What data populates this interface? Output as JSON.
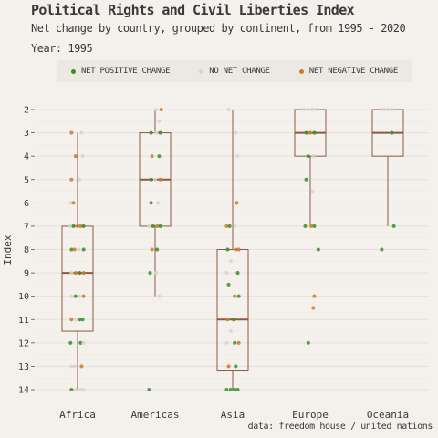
{
  "header": {
    "title": "Political Rights and Civil Liberties Index",
    "subtitle": "Net change by country, grouped by continent, from 1995 - 2020",
    "year_label": "Year: 1995"
  },
  "caption": "data: freedom house / united nations",
  "colors": {
    "background": "#f4f1ec",
    "legend_bg": "#ece8e2",
    "box": "#8a5a44",
    "positive": "#3a8f2a",
    "none": "#d8d4cf",
    "negative": "#d07a2c"
  },
  "chart_data": {
    "type": "boxplot",
    "title": "Political Rights and Civil Liberties Index",
    "subtitle": "Net change by country, grouped by continent, from 1995 - 2020",
    "ylabel": "Index",
    "xlabel": "",
    "y_axis_reversed": true,
    "ylim": [
      2,
      14
    ],
    "y_ticks": [
      2,
      3,
      4,
      5,
      6,
      7,
      8,
      9,
      10,
      11,
      12,
      13,
      14
    ],
    "grid": "horizontal",
    "legend_position": "top",
    "legend": [
      {
        "key": "positive",
        "label": "NET POSITIVE CHANGE"
      },
      {
        "key": "none",
        "label": "NO NET CHANGE"
      },
      {
        "key": "negative",
        "label": "NET NEGATIVE CHANGE"
      }
    ],
    "categories": [
      "Africa",
      "Americas",
      "Asia",
      "Europe",
      "Oceania"
    ],
    "boxes": [
      {
        "category": "Africa",
        "whisker_low": 3,
        "q1": 7,
        "median": 9,
        "q3": 11.5,
        "whisker_high": 14
      },
      {
        "category": "Americas",
        "whisker_low": 2,
        "q1": 3,
        "median": 5,
        "q3": 7,
        "whisker_high": 10
      },
      {
        "category": "Asia",
        "whisker_low": 2,
        "q1": 8,
        "median": 11,
        "q3": 13.2,
        "whisker_high": 14
      },
      {
        "category": "Europe",
        "whisker_low": 2,
        "q1": 2,
        "median": 3,
        "q3": 4,
        "whisker_high": 7
      },
      {
        "category": "Oceania",
        "whisker_low": 2,
        "q1": 2,
        "median": 3,
        "q3": 4,
        "whisker_high": 7
      }
    ],
    "points": [
      {
        "category": "Africa",
        "jitter": -0.3,
        "value": 3,
        "change": "negative"
      },
      {
        "category": "Africa",
        "jitter": 0.2,
        "value": 3,
        "change": "none"
      },
      {
        "category": "Africa",
        "jitter": -0.1,
        "value": 4,
        "change": "negative"
      },
      {
        "category": "Africa",
        "jitter": 0.25,
        "value": 4,
        "change": "none"
      },
      {
        "category": "Africa",
        "jitter": -0.3,
        "value": 5,
        "change": "negative"
      },
      {
        "category": "Africa",
        "jitter": 0.1,
        "value": 5,
        "change": "none"
      },
      {
        "category": "Africa",
        "jitter": -0.35,
        "value": 6,
        "change": "none"
      },
      {
        "category": "Africa",
        "jitter": -0.2,
        "value": 6,
        "change": "negative"
      },
      {
        "category": "Africa",
        "jitter": -0.35,
        "value": 7,
        "change": "none"
      },
      {
        "category": "Africa",
        "jitter": -0.2,
        "value": 7,
        "change": "positive"
      },
      {
        "category": "Africa",
        "jitter": 0.0,
        "value": 7,
        "change": "negative"
      },
      {
        "category": "Africa",
        "jitter": 0.15,
        "value": 7,
        "change": "negative"
      },
      {
        "category": "Africa",
        "jitter": 0.3,
        "value": 7,
        "change": "positive"
      },
      {
        "category": "Africa",
        "jitter": -0.3,
        "value": 8,
        "change": "positive"
      },
      {
        "category": "Africa",
        "jitter": -0.15,
        "value": 8,
        "change": "negative"
      },
      {
        "category": "Africa",
        "jitter": 0.05,
        "value": 8,
        "change": "none"
      },
      {
        "category": "Africa",
        "jitter": 0.3,
        "value": 8,
        "change": "positive"
      },
      {
        "category": "Africa",
        "jitter": -0.3,
        "value": 9,
        "change": "none"
      },
      {
        "category": "Africa",
        "jitter": -0.1,
        "value": 9,
        "change": "negative"
      },
      {
        "category": "Africa",
        "jitter": 0.1,
        "value": 9,
        "change": "positive"
      },
      {
        "category": "Africa",
        "jitter": 0.3,
        "value": 9,
        "change": "negative"
      },
      {
        "category": "Africa",
        "jitter": -0.3,
        "value": 10,
        "change": "none"
      },
      {
        "category": "Africa",
        "jitter": -0.1,
        "value": 10,
        "change": "positive"
      },
      {
        "category": "Africa",
        "jitter": 0.1,
        "value": 10,
        "change": "none"
      },
      {
        "category": "Africa",
        "jitter": 0.3,
        "value": 10,
        "change": "negative"
      },
      {
        "category": "Africa",
        "jitter": -0.3,
        "value": 11,
        "change": "negative"
      },
      {
        "category": "Africa",
        "jitter": -0.1,
        "value": 11,
        "change": "none"
      },
      {
        "category": "Africa",
        "jitter": 0.1,
        "value": 11,
        "change": "positive"
      },
      {
        "category": "Africa",
        "jitter": 0.25,
        "value": 11,
        "change": "positive"
      },
      {
        "category": "Africa",
        "jitter": -0.35,
        "value": 12,
        "change": "positive"
      },
      {
        "category": "Africa",
        "jitter": 0.15,
        "value": 12,
        "change": "positive"
      },
      {
        "category": "Africa",
        "jitter": 0.3,
        "value": 12,
        "change": "none"
      },
      {
        "category": "Africa",
        "jitter": -0.3,
        "value": 13,
        "change": "none"
      },
      {
        "category": "Africa",
        "jitter": -0.15,
        "value": 13,
        "change": "none"
      },
      {
        "category": "Africa",
        "jitter": 0.2,
        "value": 13,
        "change": "negative"
      },
      {
        "category": "Africa",
        "jitter": -0.3,
        "value": 14,
        "change": "positive"
      },
      {
        "category": "Africa",
        "jitter": -0.1,
        "value": 14,
        "change": "none"
      },
      {
        "category": "Africa",
        "jitter": 0.15,
        "value": 14,
        "change": "none"
      },
      {
        "category": "Africa",
        "jitter": 0.3,
        "value": 14,
        "change": "none"
      },
      {
        "category": "Americas",
        "jitter": 0.05,
        "value": 2,
        "change": "none"
      },
      {
        "category": "Americas",
        "jitter": 0.3,
        "value": 2,
        "change": "negative"
      },
      {
        "category": "Americas",
        "jitter": 0.2,
        "value": 2.5,
        "change": "none"
      },
      {
        "category": "Americas",
        "jitter": -0.2,
        "value": 3,
        "change": "positive"
      },
      {
        "category": "Americas",
        "jitter": 0.05,
        "value": 3,
        "change": "none"
      },
      {
        "category": "Americas",
        "jitter": 0.25,
        "value": 3,
        "change": "positive"
      },
      {
        "category": "Americas",
        "jitter": -0.15,
        "value": 4,
        "change": "negative"
      },
      {
        "category": "Americas",
        "jitter": 0.2,
        "value": 4,
        "change": "positive"
      },
      {
        "category": "Americas",
        "jitter": -0.2,
        "value": 5,
        "change": "positive"
      },
      {
        "category": "Americas",
        "jitter": 0.0,
        "value": 5,
        "change": "none"
      },
      {
        "category": "Americas",
        "jitter": 0.25,
        "value": 5,
        "change": "negative"
      },
      {
        "category": "Americas",
        "jitter": -0.2,
        "value": 6,
        "change": "positive"
      },
      {
        "category": "Americas",
        "jitter": 0.15,
        "value": 6,
        "change": "none"
      },
      {
        "category": "Americas",
        "jitter": -0.3,
        "value": 7,
        "change": "none"
      },
      {
        "category": "Americas",
        "jitter": -0.1,
        "value": 7,
        "change": "positive"
      },
      {
        "category": "Americas",
        "jitter": 0.1,
        "value": 7,
        "change": "negative"
      },
      {
        "category": "Americas",
        "jitter": 0.25,
        "value": 7,
        "change": "positive"
      },
      {
        "category": "Americas",
        "jitter": -0.15,
        "value": 8,
        "change": "negative"
      },
      {
        "category": "Americas",
        "jitter": 0.1,
        "value": 8,
        "change": "positive"
      },
      {
        "category": "Americas",
        "jitter": -0.25,
        "value": 9,
        "change": "positive"
      },
      {
        "category": "Americas",
        "jitter": 0.05,
        "value": 9,
        "change": "none"
      },
      {
        "category": "Americas",
        "jitter": 0.2,
        "value": 10,
        "change": "none"
      },
      {
        "category": "Americas",
        "jitter": -0.3,
        "value": 14,
        "change": "positive"
      },
      {
        "category": "Asia",
        "jitter": -0.2,
        "value": 2,
        "change": "none"
      },
      {
        "category": "Asia",
        "jitter": 0.15,
        "value": 3,
        "change": "none"
      },
      {
        "category": "Asia",
        "jitter": 0.25,
        "value": 4,
        "change": "none"
      },
      {
        "category": "Asia",
        "jitter": 0.2,
        "value": 6,
        "change": "negative"
      },
      {
        "category": "Asia",
        "jitter": -0.3,
        "value": 7,
        "change": "negative"
      },
      {
        "category": "Asia",
        "jitter": -0.15,
        "value": 7,
        "change": "positive"
      },
      {
        "category": "Asia",
        "jitter": 0.1,
        "value": 7,
        "change": "none"
      },
      {
        "category": "Asia",
        "jitter": -0.25,
        "value": 8,
        "change": "positive"
      },
      {
        "category": "Asia",
        "jitter": 0.15,
        "value": 8,
        "change": "negative"
      },
      {
        "category": "Asia",
        "jitter": 0.3,
        "value": 8,
        "change": "negative"
      },
      {
        "category": "Asia",
        "jitter": -0.1,
        "value": 8.5,
        "change": "none"
      },
      {
        "category": "Asia",
        "jitter": -0.3,
        "value": 9,
        "change": "none"
      },
      {
        "category": "Asia",
        "jitter": 0.25,
        "value": 9,
        "change": "positive"
      },
      {
        "category": "Asia",
        "jitter": -0.2,
        "value": 9.5,
        "change": "positive"
      },
      {
        "category": "Asia",
        "jitter": 0.1,
        "value": 10,
        "change": "negative"
      },
      {
        "category": "Asia",
        "jitter": 0.3,
        "value": 10,
        "change": "positive"
      },
      {
        "category": "Asia",
        "jitter": -0.25,
        "value": 11,
        "change": "negative"
      },
      {
        "category": "Asia",
        "jitter": 0.05,
        "value": 11,
        "change": "positive"
      },
      {
        "category": "Asia",
        "jitter": -0.1,
        "value": 11.5,
        "change": "none"
      },
      {
        "category": "Asia",
        "jitter": -0.3,
        "value": 12,
        "change": "none"
      },
      {
        "category": "Asia",
        "jitter": 0.1,
        "value": 12,
        "change": "positive"
      },
      {
        "category": "Asia",
        "jitter": 0.3,
        "value": 12,
        "change": "negative"
      },
      {
        "category": "Asia",
        "jitter": -0.2,
        "value": 13,
        "change": "negative"
      },
      {
        "category": "Asia",
        "jitter": 0.15,
        "value": 13,
        "change": "positive"
      },
      {
        "category": "Asia",
        "jitter": -0.3,
        "value": 14,
        "change": "positive"
      },
      {
        "category": "Asia",
        "jitter": -0.1,
        "value": 14,
        "change": "positive"
      },
      {
        "category": "Asia",
        "jitter": 0.1,
        "value": 14,
        "change": "positive"
      },
      {
        "category": "Asia",
        "jitter": 0.25,
        "value": 14,
        "change": "positive"
      },
      {
        "category": "Europe",
        "jitter": -0.3,
        "value": 2,
        "change": "none"
      },
      {
        "category": "Europe",
        "jitter": -0.1,
        "value": 2,
        "change": "none"
      },
      {
        "category": "Europe",
        "jitter": 0.1,
        "value": 2,
        "change": "none"
      },
      {
        "category": "Europe",
        "jitter": 0.3,
        "value": 2,
        "change": "none"
      },
      {
        "category": "Europe",
        "jitter": -0.2,
        "value": 3,
        "change": "positive"
      },
      {
        "category": "Europe",
        "jitter": 0.0,
        "value": 3,
        "change": "negative"
      },
      {
        "category": "Europe",
        "jitter": 0.2,
        "value": 3,
        "change": "positive"
      },
      {
        "category": "Europe",
        "jitter": -0.1,
        "value": 4,
        "change": "positive"
      },
      {
        "category": "Europe",
        "jitter": 0.15,
        "value": 4,
        "change": "none"
      },
      {
        "category": "Europe",
        "jitter": -0.2,
        "value": 5,
        "change": "positive"
      },
      {
        "category": "Europe",
        "jitter": 0.1,
        "value": 5.5,
        "change": "none"
      },
      {
        "category": "Europe",
        "jitter": -0.25,
        "value": 7,
        "change": "positive"
      },
      {
        "category": "Europe",
        "jitter": 0.05,
        "value": 7,
        "change": "negative"
      },
      {
        "category": "Europe",
        "jitter": 0.2,
        "value": 7,
        "change": "positive"
      },
      {
        "category": "Europe",
        "jitter": 0.4,
        "value": 8,
        "change": "positive"
      },
      {
        "category": "Europe",
        "jitter": 0.2,
        "value": 10,
        "change": "negative"
      },
      {
        "category": "Europe",
        "jitter": 0.15,
        "value": 10.5,
        "change": "negative"
      },
      {
        "category": "Europe",
        "jitter": -0.1,
        "value": 12,
        "change": "positive"
      },
      {
        "category": "Oceania",
        "jitter": -0.2,
        "value": 2,
        "change": "none"
      },
      {
        "category": "Oceania",
        "jitter": 0.0,
        "value": 2,
        "change": "none"
      },
      {
        "category": "Oceania",
        "jitter": 0.2,
        "value": 2,
        "change": "none"
      },
      {
        "category": "Oceania",
        "jitter": 0.2,
        "value": 3,
        "change": "positive"
      },
      {
        "category": "Oceania",
        "jitter": 0.3,
        "value": 7,
        "change": "positive"
      },
      {
        "category": "Oceania",
        "jitter": -0.3,
        "value": 8,
        "change": "positive"
      }
    ]
  }
}
